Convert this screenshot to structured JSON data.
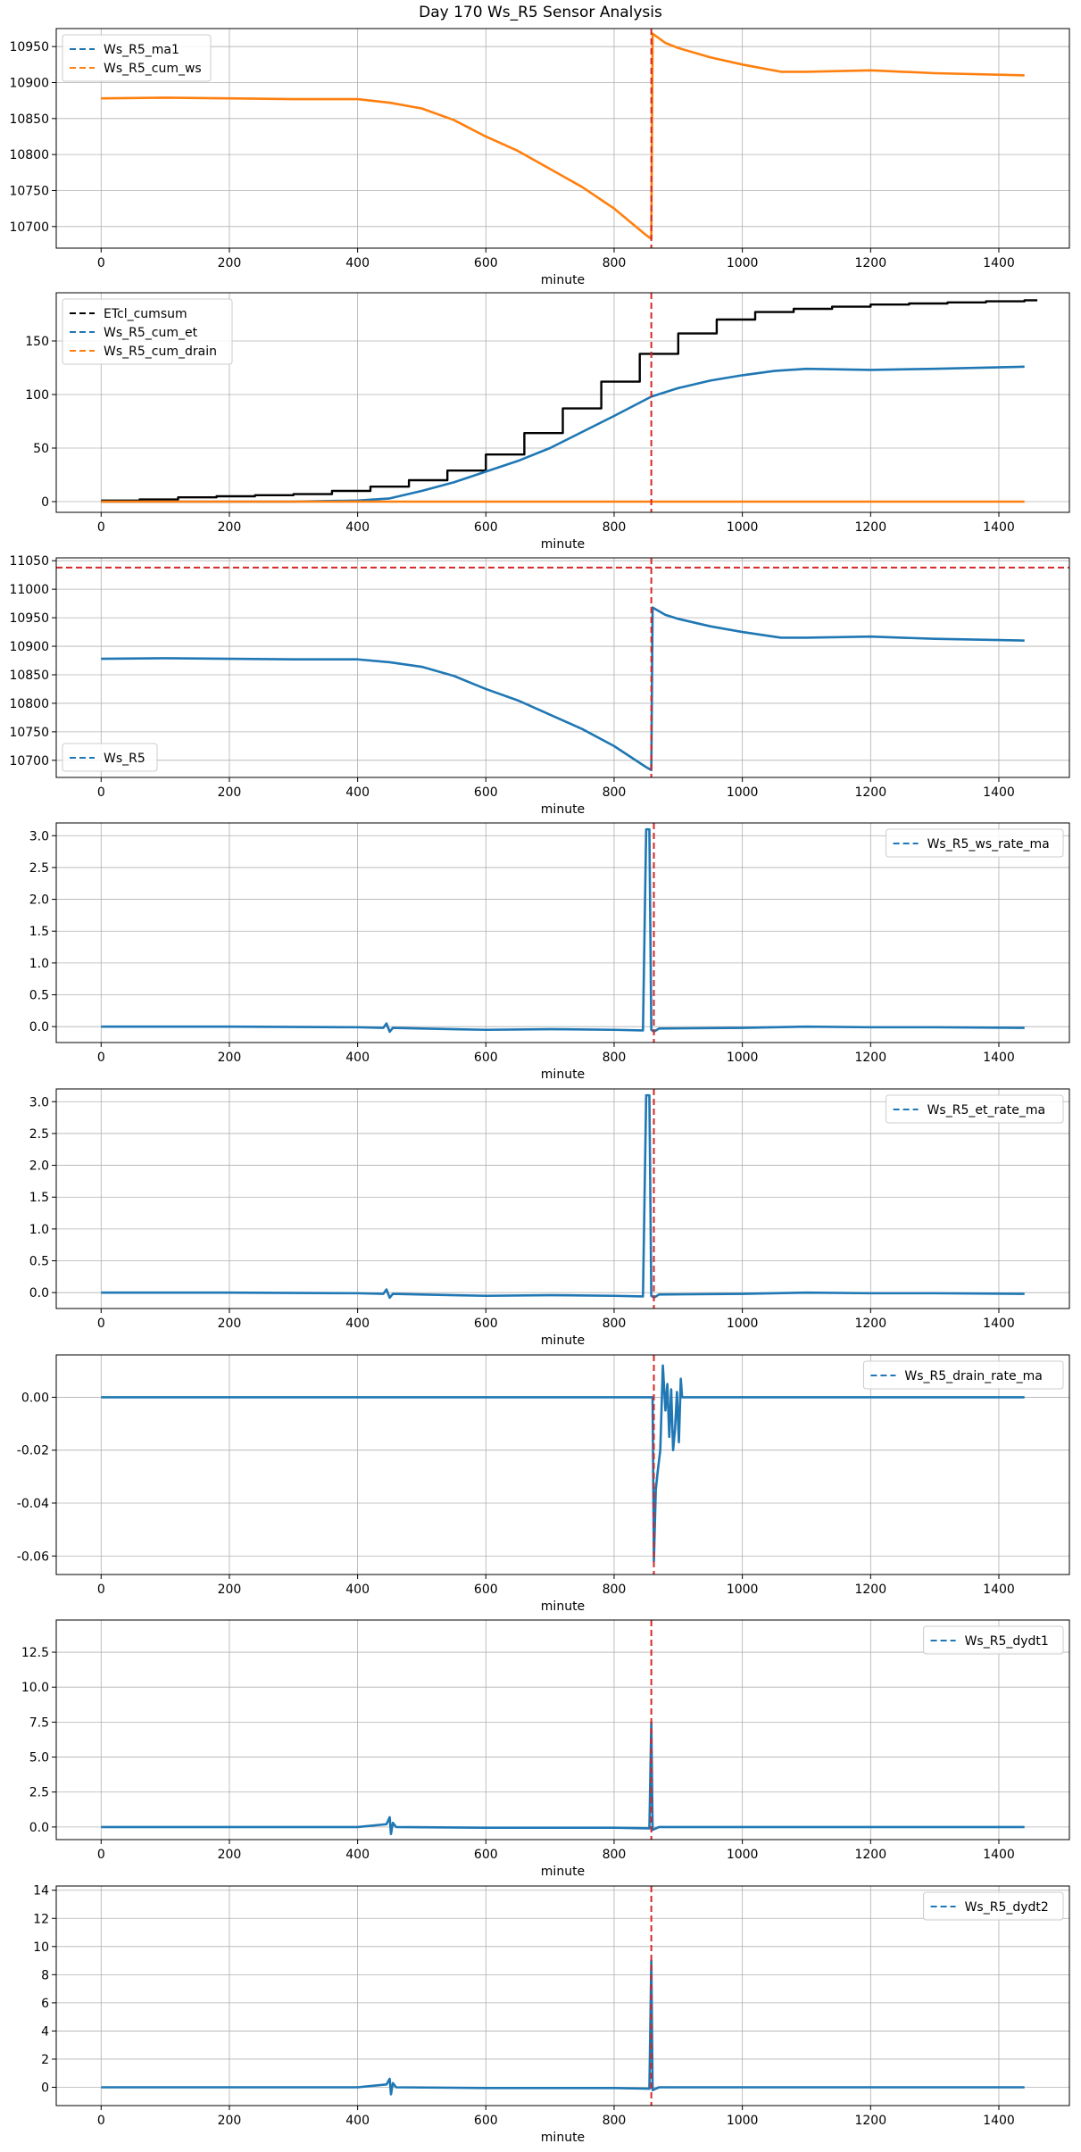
{
  "title": "Day 170 Ws_R5 Sensor Analysis",
  "colors": {
    "blue": "#1f77b4",
    "orange": "#ff7f0e",
    "black": "#000000",
    "red": "#d62728",
    "grid": "#b0b0b0"
  },
  "chart_data": [
    {
      "type": "line",
      "xlabel": "minute",
      "xlim": [
        -70,
        1510
      ],
      "ylim": [
        10670,
        10975
      ],
      "xticks": [
        0,
        200,
        400,
        600,
        800,
        1000,
        1200,
        1400
      ],
      "yticks": [
        10700,
        10750,
        10800,
        10850,
        10900,
        10950
      ],
      "ytick_labels": [
        "10700",
        "10750",
        "10800",
        "10850",
        "10900",
        "10950"
      ],
      "legend": "upper-left",
      "vline": 858,
      "series": [
        {
          "name": "Ws_R5_ma1",
          "color": "blue",
          "style": "dashed",
          "draw": false,
          "x": [
            0,
            100,
            200,
            300,
            400,
            450,
            500,
            550,
            600,
            650,
            700,
            750,
            800,
            850,
            858
          ],
          "y": [
            10878,
            10879,
            10878,
            10877,
            10877,
            10872,
            10864,
            10848,
            10825,
            10805,
            10780,
            10755,
            10725,
            10688,
            10683
          ]
        },
        {
          "name": "Ws_R5_cum_ws",
          "color": "orange",
          "style": "solid",
          "draw": true,
          "x": [
            0,
            100,
            200,
            300,
            400,
            450,
            500,
            550,
            600,
            650,
            700,
            750,
            800,
            850,
            858,
            860,
            880,
            900,
            950,
            1000,
            1060,
            1100,
            1200,
            1300,
            1440
          ],
          "y": [
            10878,
            10879,
            10878,
            10877,
            10877,
            10872,
            10864,
            10848,
            10825,
            10805,
            10780,
            10755,
            10725,
            10688,
            10683,
            10968,
            10955,
            10948,
            10935,
            10925,
            10915,
            10915,
            10917,
            10913,
            10910
          ]
        }
      ]
    },
    {
      "type": "line",
      "xlabel": "minute",
      "xlim": [
        -70,
        1510
      ],
      "ylim": [
        -10,
        195
      ],
      "xticks": [
        0,
        200,
        400,
        600,
        800,
        1000,
        1200,
        1400
      ],
      "yticks": [
        0,
        50,
        100,
        150
      ],
      "ytick_labels": [
        "0",
        "50",
        "100",
        "150"
      ],
      "legend": "upper-left",
      "vline": 858,
      "series": [
        {
          "name": "ETcl_cumsum",
          "color": "black",
          "style": "step",
          "x": [
            0,
            60,
            120,
            180,
            240,
            300,
            360,
            420,
            480,
            540,
            600,
            660,
            720,
            780,
            840,
            900,
            960,
            1020,
            1080,
            1140,
            1200,
            1260,
            1320,
            1380,
            1440
          ],
          "y": [
            1,
            2,
            4,
            5,
            6,
            7,
            10,
            14,
            20,
            29,
            44,
            64,
            87,
            112,
            138,
            157,
            170,
            177,
            180,
            182,
            184,
            185,
            186,
            187,
            188
          ]
        },
        {
          "name": "Ws_R5_cum_et",
          "color": "blue",
          "style": "solid",
          "x": [
            0,
            300,
            400,
            450,
            500,
            550,
            600,
            650,
            700,
            750,
            800,
            858,
            900,
            950,
            1000,
            1050,
            1100,
            1200,
            1300,
            1440
          ],
          "y": [
            0,
            0,
            1,
            3,
            10,
            18,
            28,
            38,
            50,
            65,
            80,
            98,
            106,
            113,
            118,
            122,
            124,
            123,
            124,
            126
          ]
        },
        {
          "name": "Ws_R5_cum_drain",
          "color": "orange",
          "style": "solid",
          "x": [
            0,
            1440
          ],
          "y": [
            0,
            0
          ]
        }
      ]
    },
    {
      "type": "line",
      "xlabel": "minute",
      "xlim": [
        -70,
        1510
      ],
      "ylim": [
        10670,
        11055
      ],
      "xticks": [
        0,
        200,
        400,
        600,
        800,
        1000,
        1200,
        1400
      ],
      "yticks": [
        10700,
        10750,
        10800,
        10850,
        10900,
        10950,
        11000,
        11050
      ],
      "ytick_labels": [
        "10700",
        "10750",
        "10800",
        "10850",
        "10900",
        "10950",
        "11000",
        "11050"
      ],
      "legend": "lower-left",
      "vline": 858,
      "hline": 11038,
      "series": [
        {
          "name": "Ws_R5",
          "color": "blue",
          "style": "solid",
          "x": [
            0,
            100,
            200,
            300,
            400,
            450,
            500,
            550,
            600,
            650,
            700,
            750,
            800,
            850,
            858,
            860,
            880,
            900,
            950,
            1000,
            1060,
            1100,
            1200,
            1300,
            1440
          ],
          "y": [
            10878,
            10879,
            10878,
            10877,
            10877,
            10872,
            10864,
            10848,
            10825,
            10805,
            10780,
            10755,
            10725,
            10688,
            10683,
            10968,
            10955,
            10948,
            10935,
            10925,
            10915,
            10915,
            10917,
            10913,
            10910
          ]
        }
      ]
    },
    {
      "type": "line",
      "xlabel": "minute",
      "xlim": [
        -70,
        1510
      ],
      "ylim": [
        -0.25,
        3.2
      ],
      "xticks": [
        0,
        200,
        400,
        600,
        800,
        1000,
        1200,
        1400
      ],
      "yticks": [
        0.0,
        0.5,
        1.0,
        1.5,
        2.0,
        2.5,
        3.0
      ],
      "ytick_labels": [
        "0.0",
        "0.5",
        "1.0",
        "1.5",
        "2.0",
        "2.5",
        "3.0"
      ],
      "legend": "upper-right",
      "vline": 862,
      "series": [
        {
          "name": "Ws_R5_ws_rate_ma",
          "color": "blue",
          "style": "solid",
          "x": [
            0,
            200,
            400,
            440,
            445,
            450,
            455,
            500,
            600,
            700,
            800,
            845,
            850,
            852,
            855,
            858,
            862,
            870,
            1000,
            1100,
            1200,
            1300,
            1440
          ],
          "y": [
            0,
            0,
            -0.01,
            -0.02,
            0.05,
            -0.08,
            -0.02,
            -0.03,
            -0.05,
            -0.04,
            -0.05,
            -0.06,
            3.1,
            3.1,
            3.1,
            -0.05,
            -0.08,
            -0.03,
            -0.02,
            0.0,
            -0.01,
            -0.01,
            -0.02
          ]
        }
      ]
    },
    {
      "type": "line",
      "xlabel": "minute",
      "xlim": [
        -70,
        1510
      ],
      "ylim": [
        -0.25,
        3.2
      ],
      "xticks": [
        0,
        200,
        400,
        600,
        800,
        1000,
        1200,
        1400
      ],
      "yticks": [
        0.0,
        0.5,
        1.0,
        1.5,
        2.0,
        2.5,
        3.0
      ],
      "ytick_labels": [
        "0.0",
        "0.5",
        "1.0",
        "1.5",
        "2.0",
        "2.5",
        "3.0"
      ],
      "legend": "upper-right",
      "vline": 862,
      "series": [
        {
          "name": "Ws_R5_et_rate_ma",
          "color": "blue",
          "style": "solid",
          "x": [
            0,
            200,
            400,
            440,
            445,
            450,
            455,
            500,
            600,
            700,
            800,
            845,
            850,
            852,
            855,
            858,
            862,
            870,
            1000,
            1100,
            1200,
            1300,
            1440
          ],
          "y": [
            0,
            0,
            -0.01,
            -0.02,
            0.05,
            -0.08,
            -0.02,
            -0.03,
            -0.05,
            -0.04,
            -0.05,
            -0.06,
            3.1,
            3.1,
            3.1,
            -0.05,
            -0.08,
            -0.03,
            -0.02,
            0.0,
            -0.01,
            -0.01,
            -0.02
          ]
        }
      ]
    },
    {
      "type": "line",
      "xlabel": "minute",
      "xlim": [
        -70,
        1510
      ],
      "ylim": [
        -0.067,
        0.016
      ],
      "xticks": [
        0,
        200,
        400,
        600,
        800,
        1000,
        1200,
        1400
      ],
      "yticks": [
        -0.06,
        -0.04,
        -0.02,
        0.0
      ],
      "ytick_labels": [
        "-0.06",
        "-0.04",
        "-0.02",
        "0.00"
      ],
      "legend": "upper-right",
      "vline": 862,
      "series": [
        {
          "name": "Ws_R5_drain_rate_ma",
          "color": "blue",
          "style": "solid",
          "x": [
            0,
            860,
            862,
            865,
            868,
            872,
            876,
            880,
            883,
            886,
            889,
            892,
            895,
            898,
            901,
            904,
            906,
            908,
            1440
          ],
          "y": [
            0,
            0,
            -0.062,
            -0.035,
            -0.028,
            -0.02,
            0.012,
            -0.005,
            0.005,
            -0.015,
            0.003,
            -0.02,
            -0.012,
            0.002,
            -0.017,
            0.007,
            0.0,
            0,
            0
          ]
        }
      ]
    },
    {
      "type": "line",
      "xlabel": "minute",
      "xlim": [
        -70,
        1510
      ],
      "ylim": [
        -0.9,
        14.8
      ],
      "xticks": [
        0,
        200,
        400,
        600,
        800,
        1000,
        1200,
        1400
      ],
      "yticks": [
        0.0,
        2.5,
        5.0,
        7.5,
        10.0,
        12.5
      ],
      "ytick_labels": [
        "0.0",
        "2.5",
        "5.0",
        "7.5",
        "10.0",
        "12.5"
      ],
      "legend": "upper-right",
      "vline": 858,
      "series": [
        {
          "name": "Ws_R5_dydt1",
          "color": "blue",
          "style": "solid",
          "x": [
            0,
            200,
            400,
            445,
            450,
            452,
            455,
            460,
            600,
            800,
            855,
            858,
            860,
            870,
            1000,
            1200,
            1440
          ],
          "y": [
            0,
            0,
            0,
            0.2,
            0.7,
            -0.5,
            0.3,
            0,
            -0.05,
            -0.05,
            -0.1,
            7.5,
            -0.2,
            0,
            0,
            0,
            0
          ]
        }
      ]
    },
    {
      "type": "line",
      "xlabel": "minute",
      "xlim": [
        -70,
        1510
      ],
      "ylim": [
        -1.3,
        14.3
      ],
      "xticks": [
        0,
        200,
        400,
        600,
        800,
        1000,
        1200,
        1400
      ],
      "yticks": [
        0,
        2,
        4,
        6,
        8,
        10,
        12,
        14
      ],
      "ytick_labels": [
        "0",
        "2",
        "4",
        "6",
        "8",
        "10",
        "12",
        "14"
      ],
      "legend": "upper-right",
      "vline": 858,
      "series": [
        {
          "name": "Ws_R5_dydt2",
          "color": "blue",
          "style": "solid",
          "x": [
            0,
            200,
            400,
            445,
            450,
            452,
            455,
            460,
            600,
            800,
            855,
            858,
            860,
            870,
            1000,
            1200,
            1440
          ],
          "y": [
            0,
            0,
            0,
            0.2,
            0.6,
            -0.5,
            0.3,
            0,
            -0.05,
            -0.05,
            -0.1,
            9.0,
            -0.2,
            0,
            0,
            0,
            0
          ]
        }
      ]
    }
  ]
}
